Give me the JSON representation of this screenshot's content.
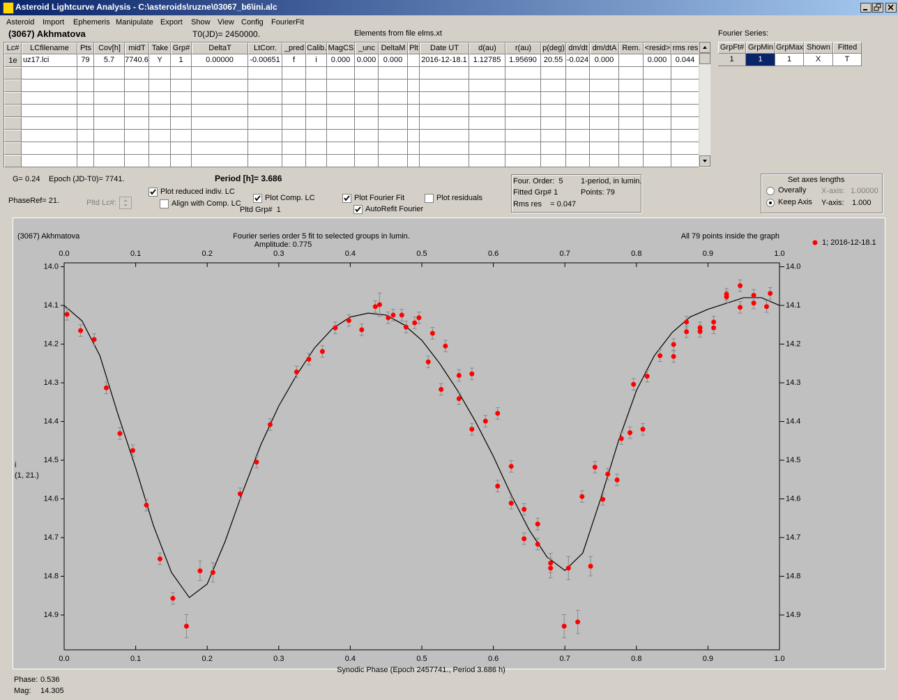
{
  "window": {
    "title": "Asteroid Lightcurve Analysis - C:\\asteroids\\ruzne\\03067_b6\\ini.alc"
  },
  "menu": [
    "Asteroid",
    "Import",
    "Ephemeris",
    "Manipulate",
    "Export",
    "Show",
    "View",
    "Config",
    "FourierFit"
  ],
  "header": {
    "asteroid": "(3067) Akhmatova",
    "t0": "T0(JD)= 2450000.",
    "elements": "Elements from file elms.xt"
  },
  "lc_table": {
    "columns": [
      "Lc#",
      "LCfilename",
      "Pts",
      "Cov[h]",
      "midT",
      "Take",
      "Grp#",
      "DeltaT",
      "LtCorr.",
      "_pred",
      "Calib.",
      "MagCS",
      "_unc",
      "DeltaM",
      "Plt",
      "Date UT",
      "d(au)",
      "r(au)",
      "p(deg)",
      "dm/dt",
      "dm/dtA",
      "Rem.",
      "<resid>",
      "rms res"
    ],
    "rows": [
      [
        "1e",
        "uz17.lci",
        "79",
        "5.7",
        "7740.6",
        "Y",
        "1",
        "0.00000",
        "-0.00651",
        "f",
        "i",
        "0.000",
        "0.000",
        "0.000",
        null,
        "2016-12-18.1",
        "1.12785",
        "1.95690",
        "20.55",
        "-0.024",
        "0.000",
        null,
        "0.000",
        "0.044"
      ]
    ]
  },
  "fourier_table": {
    "title": "Fourier Series:",
    "columns": [
      "GrpFt#",
      "GrpMin",
      "GrpMax",
      "Shown",
      "Fitted"
    ],
    "rows": [
      [
        "1",
        "1",
        "1",
        "X",
        "T"
      ]
    ]
  },
  "params": {
    "g": "G= 0.24",
    "epoch": "Epoch (JD-T0)= 7741.",
    "period": "Period [h]= 3.686",
    "phase_ref": "PhaseRef= 21.",
    "pltd_lc": "Pltd Lc#:",
    "pltd_grp": "Pltd Grp#  1"
  },
  "options": [
    {
      "label": "Plot reduced indiv. LC",
      "checked": true
    },
    {
      "label": "Align with Comp. LC",
      "checked": false
    },
    {
      "label": "Plot Comp. LC",
      "checked": true
    },
    {
      "label": "Plot Fourier Fit",
      "checked": true
    },
    {
      "label": "AutoRefit Fourier",
      "checked": true
    },
    {
      "label": "Plot residuals",
      "checked": false
    }
  ],
  "fit_info": [
    "Four. Order:  5",
    "1-period, in lumin.",
    "Fitted Grp# 1",
    "Points: 79",
    "Rms res    = 0.047"
  ],
  "axes_box": {
    "title": "Set axes lengths",
    "modes": [
      {
        "label": "Overally",
        "selected": false
      },
      {
        "label": "Keep Axis",
        "selected": true
      }
    ],
    "x_label": "X-axis:",
    "x_value": "1.00000",
    "y_label": "Y-axis:",
    "y_value": "1.000"
  },
  "chart_data": {
    "type": "scatter",
    "title": "(3067) Akhmatova",
    "subtitle": "Fourier series order 5 fit to selected groups in lumin.",
    "annotation": "Amplitude: 0.775",
    "note": "All 79 points inside the graph",
    "x_label": "Synodic Phase (Epoch 2457741., Period 3.686 h)",
    "y_label": "i",
    "y_label_sub": "(1, 21.)",
    "xlim": [
      0,
      1
    ],
    "ylim": [
      13.99,
      14.99
    ],
    "y_inverted": true,
    "xticks": [
      {
        "value": 0,
        "label": "0.0"
      },
      0.1,
      0.2,
      0.3,
      0.4,
      0.5,
      0.6,
      0.7,
      0.8,
      0.9,
      {
        "value": 1,
        "label": "1.0"
      }
    ],
    "yticks": [
      {
        "value": 14,
        "label": "14.0"
      },
      14.1,
      14.2,
      14.3,
      14.4,
      14.5,
      14.6,
      14.7,
      14.8,
      14.9
    ],
    "grid": false,
    "legend": "top-right",
    "series": [
      {
        "name": "1; 2016-12-18.1",
        "color": "#ff0000",
        "x": [
          0.004,
          0.023,
          0.042,
          0.059,
          0.078,
          0.096,
          0.115,
          0.134,
          0.152,
          0.171,
          0.19,
          0.208,
          0.246,
          0.269,
          0.288,
          0.325,
          0.342,
          0.361,
          0.379,
          0.398,
          0.416,
          0.435,
          0.441,
          0.453,
          0.46,
          0.472,
          0.478,
          0.49,
          0.496,
          0.509,
          0.515,
          0.527,
          0.533,
          0.552,
          0.552,
          0.57,
          0.57,
          0.589,
          0.606,
          0.606,
          0.625,
          0.625,
          0.643,
          0.643,
          0.662,
          0.662,
          0.68,
          0.68,
          0.699,
          0.705,
          0.718,
          0.724,
          0.736,
          0.742,
          0.753,
          0.76,
          0.773,
          0.779,
          0.791,
          0.796,
          0.809,
          0.815,
          0.833,
          0.852,
          0.852,
          0.87,
          0.87,
          0.889,
          0.889,
          0.908,
          0.908,
          0.926,
          0.926,
          0.945,
          0.945,
          0.964,
          0.964,
          0.982,
          0.987
        ],
        "values": [
          14.123,
          14.165,
          14.188,
          14.313,
          14.431,
          14.475,
          14.616,
          14.755,
          14.857,
          14.929,
          14.786,
          14.79,
          14.587,
          14.505,
          14.408,
          14.272,
          14.239,
          14.219,
          14.158,
          14.139,
          14.163,
          14.103,
          14.098,
          14.132,
          14.125,
          14.125,
          14.156,
          14.145,
          14.132,
          14.246,
          14.172,
          14.317,
          14.205,
          14.281,
          14.341,
          14.42,
          14.277,
          14.399,
          14.379,
          14.567,
          14.611,
          14.516,
          14.627,
          14.703,
          14.665,
          14.717,
          14.766,
          14.779,
          14.929,
          14.779,
          14.918,
          14.594,
          14.774,
          14.518,
          14.601,
          14.536,
          14.551,
          14.444,
          14.429,
          14.304,
          14.42,
          14.283,
          14.23,
          14.201,
          14.232,
          14.143,
          14.168,
          14.158,
          14.167,
          14.143,
          14.158,
          14.071,
          14.078,
          14.049,
          14.105,
          14.074,
          14.094,
          14.103,
          14.069
        ],
        "errors": [
          0.015,
          0.015,
          0.015,
          0.015,
          0.015,
          0.015,
          0.015,
          0.015,
          0.015,
          0.03,
          0.025,
          0.025,
          0.015,
          0.015,
          0.015,
          0.015,
          0.015,
          0.015,
          0.015,
          0.015,
          0.015,
          0.015,
          0.03,
          0.015,
          0.015,
          0.015,
          0.015,
          0.015,
          0.015,
          0.015,
          0.015,
          0.015,
          0.015,
          0.015,
          0.015,
          0.015,
          0.015,
          0.015,
          0.015,
          0.015,
          0.015,
          0.015,
          0.015,
          0.015,
          0.015,
          0.015,
          0.025,
          0.025,
          0.03,
          0.03,
          0.03,
          0.015,
          0.025,
          0.015,
          0.015,
          0.015,
          0.015,
          0.015,
          0.015,
          0.015,
          0.015,
          0.015,
          0.015,
          0.015,
          0.015,
          0.015,
          0.015,
          0.015,
          0.015,
          0.015,
          0.015,
          0.015,
          0.015,
          0.015,
          0.015,
          0.015,
          0.015,
          0.015,
          0.015
        ]
      }
    ],
    "fit": {
      "color": "#000000",
      "x": [
        0,
        0.025,
        0.05,
        0.075,
        0.1,
        0.125,
        0.15,
        0.175,
        0.2,
        0.225,
        0.25,
        0.275,
        0.3,
        0.325,
        0.35,
        0.375,
        0.4,
        0.425,
        0.45,
        0.475,
        0.5,
        0.525,
        0.55,
        0.575,
        0.6,
        0.625,
        0.65,
        0.675,
        0.7,
        0.725,
        0.75,
        0.775,
        0.8,
        0.825,
        0.85,
        0.875,
        0.9,
        0.925,
        0.95,
        0.975,
        1
      ],
      "values": [
        14.1,
        14.14,
        14.23,
        14.38,
        14.52,
        14.67,
        14.79,
        14.855,
        14.82,
        14.71,
        14.58,
        14.46,
        14.36,
        14.28,
        14.21,
        14.16,
        14.13,
        14.12,
        14.125,
        14.15,
        14.19,
        14.25,
        14.32,
        14.4,
        14.49,
        14.59,
        14.68,
        14.75,
        14.785,
        14.74,
        14.6,
        14.45,
        14.32,
        14.23,
        14.17,
        14.13,
        14.11,
        14.095,
        14.08,
        14.08,
        14.1
      ]
    }
  },
  "status": {
    "phase_label": "Phase:",
    "phase": "0.536",
    "mag_label": "Mag:",
    "mag": "14.305"
  }
}
